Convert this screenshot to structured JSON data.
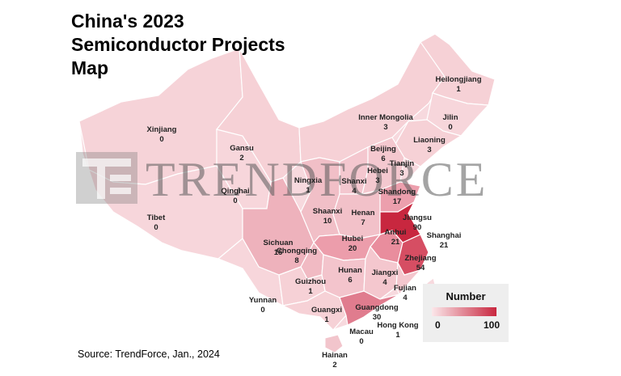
{
  "title_lines": [
    "China's 2023",
    "Semiconductor Projects",
    "Map"
  ],
  "source": "Source: TrendForce, Jan., 2024",
  "watermark": "TRENDFORCE",
  "legend": {
    "title": "Number",
    "min": "0",
    "max": "100",
    "min_color": "#fbe7ea",
    "max_color": "#c8273f"
  },
  "colors": {
    "border": "#ffffff",
    "mainland": "#f6d3d8",
    "light": "#f7d6db",
    "mid": "#eeb2bc",
    "strong": "#df7386",
    "top": "#c8273f"
  },
  "provinces": [
    {
      "name": "Heilongjiang",
      "value": 1
    },
    {
      "name": "Jilin",
      "value": 0
    },
    {
      "name": "Liaoning",
      "value": 3
    },
    {
      "name": "Inner Mongolia",
      "value": 3
    },
    {
      "name": "Xinjiang",
      "value": 0
    },
    {
      "name": "Gansu",
      "value": 2
    },
    {
      "name": "Beijing",
      "value": 6
    },
    {
      "name": "Tianjin",
      "value": 3
    },
    {
      "name": "Hebei",
      "value": 3
    },
    {
      "name": "Ningxia",
      "value": 1
    },
    {
      "name": "Shanxi",
      "value": 4
    },
    {
      "name": "Shandong",
      "value": 17
    },
    {
      "name": "Qinghai",
      "value": 0
    },
    {
      "name": "Tibet",
      "value": 0
    },
    {
      "name": "Shaanxi",
      "value": 10
    },
    {
      "name": "Henan",
      "value": 7
    },
    {
      "name": "Jiangsu",
      "value": 90
    },
    {
      "name": "Anhui",
      "value": 21
    },
    {
      "name": "Shanghai",
      "value": 21
    },
    {
      "name": "Sichuan",
      "value": 15
    },
    {
      "name": "Hubei",
      "value": 20
    },
    {
      "name": "Chongqing",
      "value": 8
    },
    {
      "name": "Zhejiang",
      "value": 54
    },
    {
      "name": "Hunan",
      "value": 6
    },
    {
      "name": "Jiangxi",
      "value": 4
    },
    {
      "name": "Guizhou",
      "value": 1
    },
    {
      "name": "Fujian",
      "value": 4
    },
    {
      "name": "Yunnan",
      "value": 0
    },
    {
      "name": "Guangxi",
      "value": 1
    },
    {
      "name": "Guangdong",
      "value": 30
    },
    {
      "name": "Hong Kong",
      "value": 1
    },
    {
      "name": "Macau",
      "value": 0
    },
    {
      "name": "Hainan",
      "value": 2
    }
  ]
}
